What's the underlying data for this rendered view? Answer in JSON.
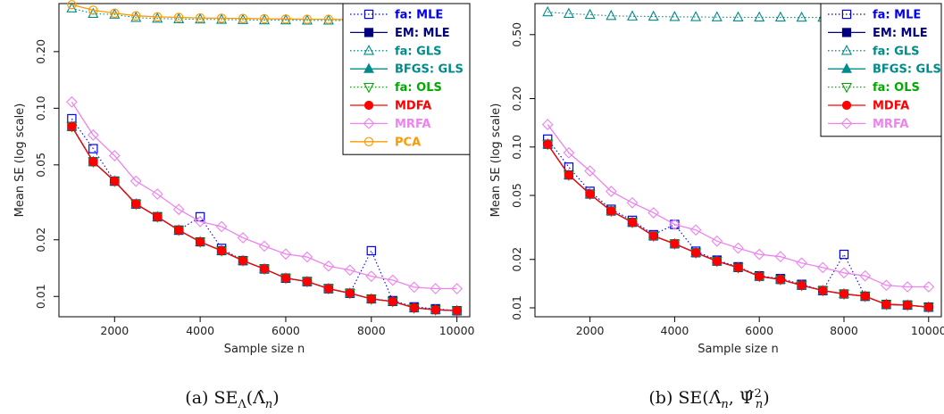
{
  "chart_data": [
    {
      "type": "line",
      "caption": "(a) SE_Λ(Λ̂_n)",
      "xlabel": "Sample size n",
      "ylabel": "Mean SE (log scale)",
      "log_y": true,
      "xlim": [
        700,
        10300
      ],
      "ylim": [
        0.0078,
        0.36
      ],
      "xticks": [
        2000,
        4000,
        6000,
        8000,
        10000
      ],
      "yticks": [
        0.01,
        0.02,
        0.05,
        0.1,
        0.2
      ],
      "ytick_labels": [
        "0.01",
        "0.02",
        "0.05",
        "0.10",
        "0.20"
      ],
      "legend_position": "top-right",
      "x": [
        1000,
        1500,
        2000,
        2500,
        3000,
        3500,
        4000,
        4500,
        5000,
        5500,
        6000,
        6500,
        7000,
        7500,
        8000,
        8500,
        9000,
        9500,
        10000
      ],
      "series": [
        {
          "name": "fa: MLE",
          "color": "#0000ee",
          "marker": "square-open",
          "dash": "dotted",
          "values": [
            0.088,
            0.061,
            0.041,
            0.031,
            0.0265,
            0.0225,
            0.0265,
            0.018,
            0.0155,
            0.014,
            0.0125,
            0.012,
            0.011,
            0.0104,
            0.0175,
            0.0095,
            0.0088,
            0.0086,
            0.0084
          ]
        },
        {
          "name": "EM: MLE",
          "color": "#000080",
          "marker": "square-filled",
          "dash": "solid",
          "values": [
            0.08,
            0.052,
            0.041,
            0.031,
            0.0265,
            0.0225,
            0.0195,
            0.0175,
            0.0155,
            0.014,
            0.0125,
            0.012,
            0.011,
            0.0104,
            0.0097,
            0.0094,
            0.0087,
            0.0085,
            0.0084
          ]
        },
        {
          "name": "fa: GLS",
          "color": "#008b8b",
          "marker": "triangle-open",
          "dash": "dotted",
          "values": [
            0.34,
            0.318,
            0.315,
            0.303,
            0.3,
            0.298,
            0.297,
            0.296,
            0.295,
            0.294,
            0.294,
            0.293,
            0.293,
            0.292,
            0.292,
            0.292,
            0.291,
            0.291,
            0.291
          ]
        },
        {
          "name": "BFGS: GLS",
          "color": "#008b8b",
          "marker": "triangle-filled",
          "dash": "solid",
          "values": [
            0.08,
            0.052,
            0.041,
            0.031,
            0.0265,
            0.0225,
            0.0195,
            0.0175,
            0.0155,
            0.014,
            0.0125,
            0.012,
            0.011,
            0.0104,
            0.0097,
            0.0094,
            0.0087,
            0.0085,
            0.0084
          ]
        },
        {
          "name": "fa: OLS",
          "color": "#00aa00",
          "marker": "triangle-down-open",
          "dash": "dotted",
          "values": [
            0.08,
            0.052,
            0.041,
            0.031,
            0.0265,
            0.0225,
            0.0195,
            0.0175,
            0.0155,
            0.014,
            0.0125,
            0.012,
            0.011,
            0.0104,
            0.0097,
            0.0094,
            0.0087,
            0.0085,
            0.0084
          ]
        },
        {
          "name": "MDFA",
          "color": "#ff0000",
          "marker": "circle-filled",
          "dash": "solid",
          "values": [
            0.08,
            0.052,
            0.041,
            0.031,
            0.0265,
            0.0225,
            0.0195,
            0.0175,
            0.0155,
            0.014,
            0.0125,
            0.012,
            0.011,
            0.0104,
            0.0097,
            0.0094,
            0.0087,
            0.0085,
            0.0084
          ]
        },
        {
          "name": "MRFA",
          "color": "#ee82ee",
          "marker": "diamond-open",
          "dash": "solid",
          "values": [
            0.108,
            0.072,
            0.056,
            0.041,
            0.035,
            0.029,
            0.025,
            0.0235,
            0.0205,
            0.0185,
            0.0168,
            0.0162,
            0.0145,
            0.0138,
            0.0128,
            0.0122,
            0.0112,
            0.011,
            0.011
          ]
        },
        {
          "name": "PCA",
          "color": "#ff9900",
          "marker": "circle-open",
          "dash": "solid",
          "values": [
            0.355,
            0.332,
            0.32,
            0.31,
            0.306,
            0.304,
            0.302,
            0.301,
            0.3,
            0.299,
            0.298,
            0.297,
            0.297,
            0.296,
            0.296,
            0.295,
            0.295,
            0.295,
            0.294
          ]
        }
      ]
    },
    {
      "type": "line",
      "caption": "(b) SE(Λ̂_n, Ψ̂²_n)",
      "xlabel": "Sample size n",
      "ylabel": "Mean SE (log scale)",
      "log_y": true,
      "xlim": [
        700,
        10300
      ],
      "ylim": [
        0.0088,
        0.78
      ],
      "xticks": [
        2000,
        4000,
        6000,
        8000,
        10000
      ],
      "yticks": [
        0.01,
        0.02,
        0.05,
        0.1,
        0.2,
        0.5
      ],
      "ytick_labels": [
        "0.01",
        "0.02",
        "0.05",
        "0.10",
        "0.20",
        "0.50"
      ],
      "legend_position": "top-right",
      "x": [
        1000,
        1500,
        2000,
        2500,
        3000,
        3500,
        4000,
        4500,
        5000,
        5500,
        6000,
        6500,
        7000,
        7500,
        8000,
        8500,
        9000,
        9500,
        10000
      ],
      "series": [
        {
          "name": "fa: MLE",
          "color": "#0000ee",
          "marker": "square-open",
          "dash": "dotted",
          "values": [
            0.112,
            0.075,
            0.053,
            0.041,
            0.035,
            0.0285,
            0.033,
            0.0225,
            0.0198,
            0.018,
            0.0158,
            0.0152,
            0.014,
            0.0128,
            0.0215,
            0.0118,
            0.0105,
            0.0104,
            0.0101
          ]
        },
        {
          "name": "EM: MLE",
          "color": "#000080",
          "marker": "square-filled",
          "dash": "solid",
          "values": [
            0.104,
            0.067,
            0.051,
            0.04,
            0.034,
            0.028,
            0.025,
            0.022,
            0.0195,
            0.0178,
            0.0157,
            0.015,
            0.0138,
            0.0128,
            0.0122,
            0.0118,
            0.0105,
            0.0104,
            0.0101
          ]
        },
        {
          "name": "fa: GLS",
          "color": "#008b8b",
          "marker": "triangle-open",
          "dash": "dotted",
          "values": [
            0.69,
            0.675,
            0.665,
            0.655,
            0.65,
            0.648,
            0.645,
            0.644,
            0.642,
            0.641,
            0.64,
            0.64,
            0.639,
            0.639,
            0.638,
            0.638,
            0.638,
            0.637,
            0.637
          ]
        },
        {
          "name": "BFGS: GLS",
          "color": "#008b8b",
          "marker": "triangle-filled",
          "dash": "solid",
          "values": [
            0.104,
            0.067,
            0.051,
            0.04,
            0.034,
            0.028,
            0.025,
            0.022,
            0.0195,
            0.0178,
            0.0157,
            0.015,
            0.0138,
            0.0128,
            0.0122,
            0.0118,
            0.0105,
            0.0104,
            0.0101
          ]
        },
        {
          "name": "fa: OLS",
          "color": "#00aa00",
          "marker": "triangle-down-open",
          "dash": "dotted",
          "values": [
            0.104,
            0.067,
            0.051,
            0.04,
            0.034,
            0.028,
            0.025,
            0.022,
            0.0195,
            0.0178,
            0.0157,
            0.015,
            0.0138,
            0.0128,
            0.0122,
            0.0118,
            0.0105,
            0.0104,
            0.0101
          ]
        },
        {
          "name": "MDFA",
          "color": "#ff0000",
          "marker": "circle-filled",
          "dash": "solid",
          "values": [
            0.104,
            0.067,
            0.051,
            0.04,
            0.034,
            0.028,
            0.025,
            0.022,
            0.0195,
            0.0178,
            0.0157,
            0.015,
            0.0138,
            0.0128,
            0.0122,
            0.0118,
            0.0105,
            0.0104,
            0.0101
          ]
        },
        {
          "name": "MRFA",
          "color": "#ee82ee",
          "marker": "diamond-open",
          "dash": "solid",
          "values": [
            0.138,
            0.092,
            0.071,
            0.053,
            0.045,
            0.039,
            0.033,
            0.0305,
            0.026,
            0.0235,
            0.0215,
            0.0208,
            0.019,
            0.0178,
            0.0165,
            0.0158,
            0.0138,
            0.0135,
            0.0135
          ]
        }
      ]
    }
  ]
}
